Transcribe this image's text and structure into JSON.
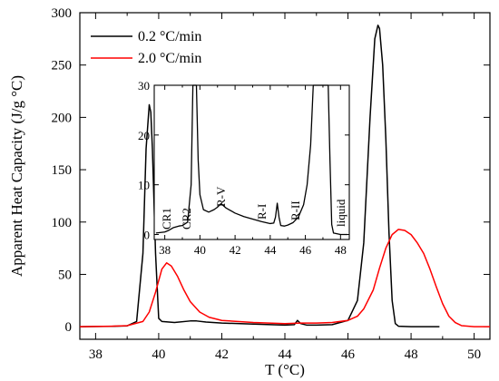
{
  "chart_data": [
    {
      "type": "line",
      "xlabel": "T (°C)",
      "ylabel": "Apparent Heat Capacity (J/g °C)",
      "xlim": [
        37.5,
        50.5
      ],
      "ylim": [
        -12,
        300
      ],
      "x_ticks": [
        38,
        40,
        42,
        44,
        46,
        48,
        50
      ],
      "y_ticks": [
        0,
        50,
        100,
        150,
        200,
        250,
        300
      ],
      "legend_position": "top-left",
      "series": [
        {
          "name": "0.2 °C/min",
          "color": "#000000",
          "points": [
            [
              37.5,
              0
            ],
            [
              38.5,
              0.3
            ],
            [
              39.0,
              0.8
            ],
            [
              39.3,
              5
            ],
            [
              39.5,
              70
            ],
            [
              39.6,
              170
            ],
            [
              39.7,
              212
            ],
            [
              39.75,
              205
            ],
            [
              39.8,
              170
            ],
            [
              39.9,
              70
            ],
            [
              40.0,
              8
            ],
            [
              40.1,
              5
            ],
            [
              40.5,
              4
            ],
            [
              41.0,
              5.5
            ],
            [
              41.2,
              5.5
            ],
            [
              41.5,
              4.5
            ],
            [
              42.0,
              3.5
            ],
            [
              43.0,
              2.5
            ],
            [
              44.0,
              1.5
            ],
            [
              44.3,
              2
            ],
            [
              44.4,
              6
            ],
            [
              44.5,
              3
            ],
            [
              44.7,
              1.5
            ],
            [
              45.0,
              1.5
            ],
            [
              45.5,
              2
            ],
            [
              46.0,
              6
            ],
            [
              46.3,
              25
            ],
            [
              46.5,
              80
            ],
            [
              46.7,
              200
            ],
            [
              46.85,
              275
            ],
            [
              46.95,
              288
            ],
            [
              47.0,
              285
            ],
            [
              47.1,
              250
            ],
            [
              47.2,
              180
            ],
            [
              47.3,
              90
            ],
            [
              47.4,
              25
            ],
            [
              47.5,
              3
            ],
            [
              47.6,
              0.5
            ],
            [
              48.0,
              0
            ],
            [
              48.9,
              0
            ]
          ]
        },
        {
          "name": "2.0 °C/min",
          "color": "#ff0000",
          "points": [
            [
              37.5,
              0
            ],
            [
              38.5,
              0.5
            ],
            [
              39.0,
              1
            ],
            [
              39.5,
              5
            ],
            [
              39.7,
              14
            ],
            [
              39.9,
              33
            ],
            [
              40.1,
              55
            ],
            [
              40.25,
              61
            ],
            [
              40.4,
              58
            ],
            [
              40.6,
              48
            ],
            [
              40.8,
              35
            ],
            [
              41.0,
              24
            ],
            [
              41.3,
              14
            ],
            [
              41.6,
              9
            ],
            [
              42.0,
              6
            ],
            [
              43.0,
              4
            ],
            [
              44.0,
              3
            ],
            [
              44.5,
              3.5
            ],
            [
              45.0,
              3.5
            ],
            [
              45.5,
              4
            ],
            [
              46.0,
              6
            ],
            [
              46.3,
              10
            ],
            [
              46.5,
              17
            ],
            [
              46.8,
              35
            ],
            [
              47.0,
              56
            ],
            [
              47.2,
              75
            ],
            [
              47.4,
              88
            ],
            [
              47.6,
              93
            ],
            [
              47.8,
              92
            ],
            [
              48.0,
              88
            ],
            [
              48.2,
              80
            ],
            [
              48.4,
              70
            ],
            [
              48.6,
              55
            ],
            [
              48.8,
              38
            ],
            [
              49.0,
              22
            ],
            [
              49.2,
              10
            ],
            [
              49.4,
              4
            ],
            [
              49.6,
              1
            ],
            [
              50.0,
              0
            ],
            [
              50.5,
              0
            ]
          ]
        }
      ]
    },
    {
      "type": "line",
      "xlim": [
        37.4,
        48.5
      ],
      "ylim": [
        -1,
        30
      ],
      "x_ticks": [
        38,
        40,
        42,
        44,
        46,
        48
      ],
      "y_ticks": [
        0,
        10,
        20,
        30
      ],
      "series": [
        {
          "name": "",
          "color": "#000000",
          "points": [
            [
              37.5,
              0.3
            ],
            [
              38.0,
              0.5
            ],
            [
              38.2,
              0.8
            ],
            [
              38.5,
              1.4
            ],
            [
              38.8,
              1.7
            ],
            [
              39.0,
              1.8
            ],
            [
              39.3,
              2.5
            ],
            [
              39.5,
              10
            ],
            [
              39.6,
              30
            ],
            [
              39.8,
              30
            ],
            [
              39.9,
              15
            ],
            [
              40.0,
              8
            ],
            [
              40.2,
              5
            ],
            [
              40.5,
              4.5
            ],
            [
              40.8,
              5
            ],
            [
              41.0,
              5.5
            ],
            [
              41.2,
              6.2
            ],
            [
              41.5,
              5.3
            ],
            [
              42.0,
              4.3
            ],
            [
              42.5,
              3.6
            ],
            [
              43.0,
              3.1
            ],
            [
              43.5,
              2.6
            ],
            [
              44.0,
              2.2
            ],
            [
              44.2,
              2.3
            ],
            [
              44.3,
              3.5
            ],
            [
              44.4,
              6.3
            ],
            [
              44.5,
              3.5
            ],
            [
              44.6,
              1.8
            ],
            [
              44.8,
              1.7
            ],
            [
              45.0,
              1.9
            ],
            [
              45.3,
              2.4
            ],
            [
              45.6,
              3.5
            ],
            [
              45.9,
              6
            ],
            [
              46.1,
              10
            ],
            [
              46.3,
              18
            ],
            [
              46.45,
              30
            ],
            [
              47.3,
              30
            ],
            [
              47.4,
              15
            ],
            [
              47.5,
              2
            ],
            [
              47.6,
              0.3
            ],
            [
              48.0,
              0
            ],
            [
              48.4,
              0
            ]
          ]
        }
      ],
      "annotations": [
        "CR1",
        "CR2",
        "R-V",
        "R-I",
        "R-II",
        "liquid"
      ]
    }
  ]
}
